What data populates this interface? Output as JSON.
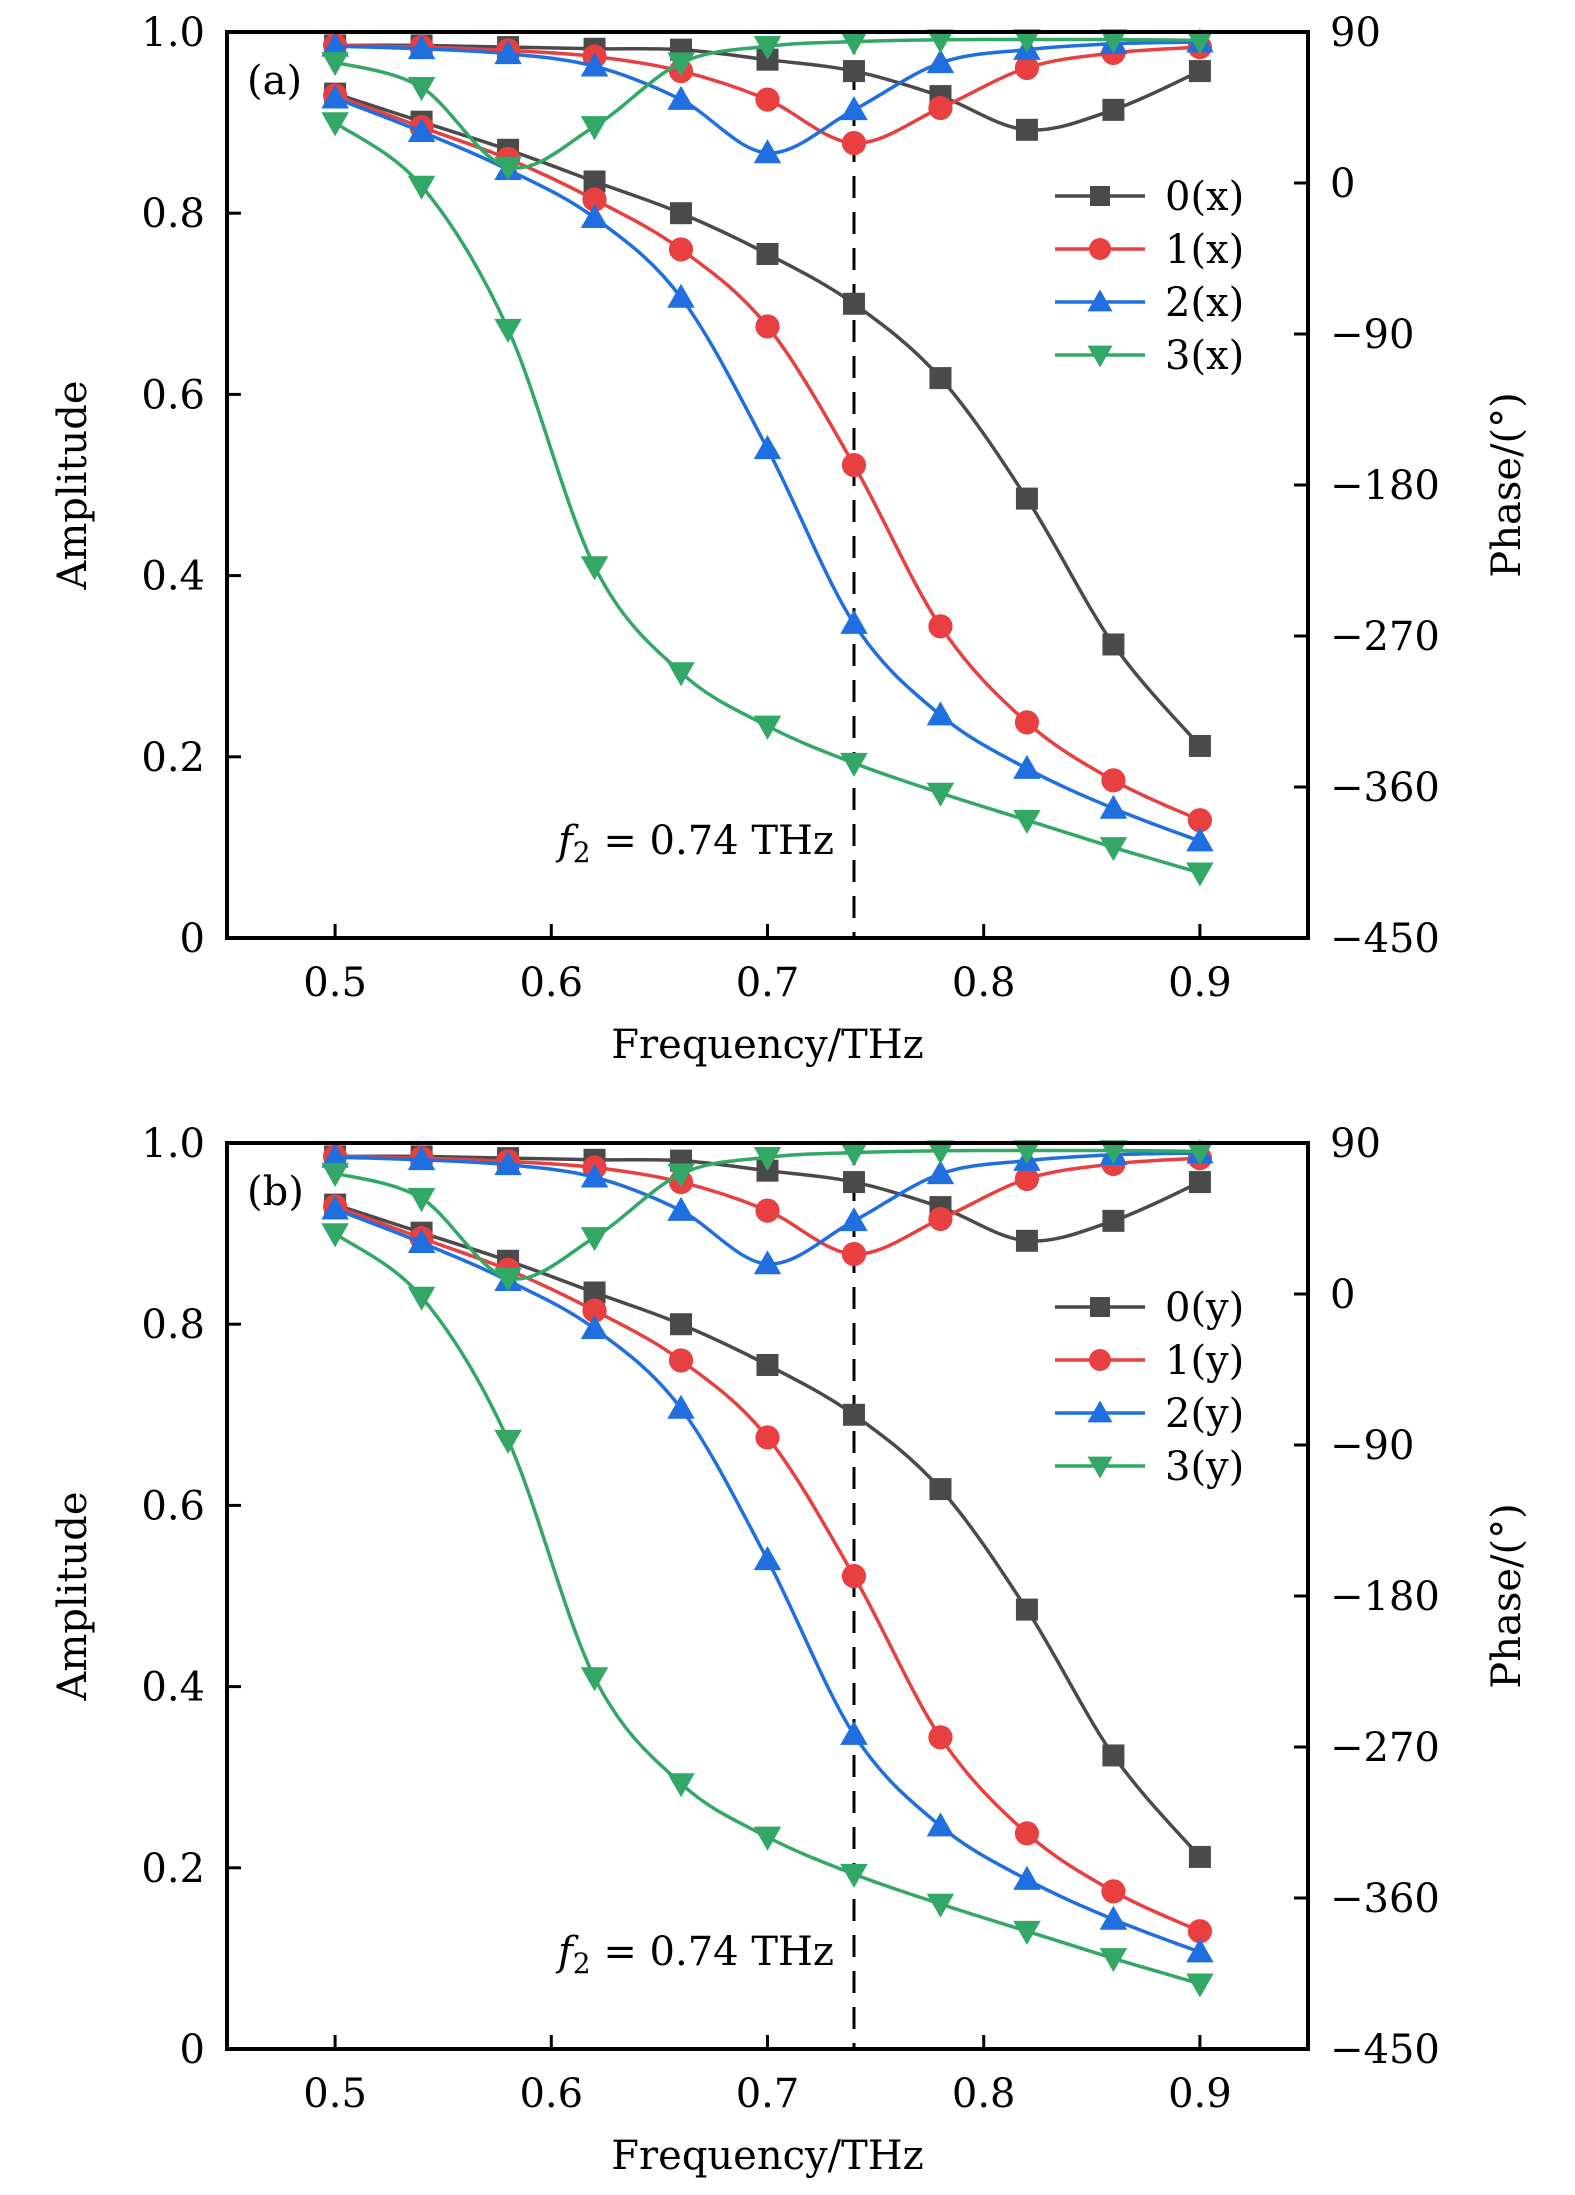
{
  "chart_data": [
    {
      "type": "line",
      "panel_label": "(a)",
      "xlabel": "Frequency/THz",
      "ylabel": "Amplitude",
      "y2label": "Phase/(°)",
      "xlim": [
        0.45,
        0.95
      ],
      "ylim": [
        0,
        1.0
      ],
      "y2lim": [
        -450,
        90
      ],
      "xticks": [
        0.5,
        0.6,
        0.7,
        0.8,
        0.9
      ],
      "xtick_labels": [
        "0.5",
        "0.6",
        "0.7",
        "0.8",
        "0.9"
      ],
      "yticks": [
        0,
        0.2,
        0.4,
        0.6,
        0.8,
        1.0
      ],
      "ytick_labels": [
        "0",
        "0.2",
        "0.4",
        "0.6",
        "0.8",
        "1.0"
      ],
      "y2ticks": [
        90,
        0,
        -90,
        -180,
        -270,
        -360,
        -450
      ],
      "y2tick_labels": [
        "90",
        "0",
        "−90",
        "−180",
        "−270",
        "−360",
        "−450"
      ],
      "grid": false,
      "legend_position": "right",
      "annotation": {
        "text_f": "f",
        "text_sub": "2",
        "text_rest": " = 0.74  THz",
        "x": 0.74
      },
      "x": [
        0.5,
        0.54,
        0.58,
        0.62,
        0.66,
        0.7,
        0.74,
        0.78,
        0.82,
        0.86,
        0.9
      ],
      "series": [
        {
          "name": "0(x)",
          "marker": "square",
          "color": "#4a4a4a",
          "amplitude": [
            0.932,
            0.901,
            0.87,
            0.835,
            0.8,
            0.755,
            0.7,
            0.618,
            0.485,
            0.324,
            0.212
          ],
          "phase": [
            82,
            82,
            81,
            80,
            79.5,
            73.5,
            66.7,
            51.8,
            31.7,
            43.6,
            66.7
          ]
        },
        {
          "name": "1(x)",
          "marker": "circle",
          "color": "#e84040",
          "amplitude": [
            0.93,
            0.895,
            0.86,
            0.815,
            0.76,
            0.675,
            0.522,
            0.344,
            0.238,
            0.174,
            0.13
          ],
          "phase": [
            82,
            81,
            79,
            75.4,
            66.7,
            49.7,
            23.8,
            44.7,
            68.6,
            77.5,
            81
          ]
        },
        {
          "name": "2(x)",
          "marker": "triangle-up",
          "color": "#1f6fe0",
          "amplitude": [
            0.927,
            0.89,
            0.848,
            0.795,
            0.707,
            0.54,
            0.347,
            0.246,
            0.187,
            0.143,
            0.107
          ],
          "phase": [
            81.5,
            80,
            77,
            69.6,
            49.7,
            17.9,
            43.6,
            71.6,
            79.5,
            83,
            84
          ]
        },
        {
          "name": "3(x)",
          "marker": "triangle-down",
          "color": "#33a866",
          "amplitude": [
            0.9,
            0.83,
            0.672,
            0.41,
            0.293,
            0.234,
            0.193,
            0.16,
            0.13,
            0.1,
            0.072
          ],
          "phase": [
            72,
            57,
            9.5,
            33.7,
            71.6,
            81.5,
            84.3,
            85.4,
            85.5,
            85.5,
            85
          ]
        }
      ]
    },
    {
      "type": "line",
      "panel_label": "(b)",
      "xlabel": "Frequency/THz",
      "ylabel": "Amplitude",
      "y2label": "Phase/(°)",
      "xlim": [
        0.45,
        0.95
      ],
      "ylim": [
        0,
        1.0
      ],
      "y2lim": [
        -450,
        90
      ],
      "xticks": [
        0.5,
        0.6,
        0.7,
        0.8,
        0.9
      ],
      "xtick_labels": [
        "0.5",
        "0.6",
        "0.7",
        "0.8",
        "0.9"
      ],
      "yticks": [
        0,
        0.2,
        0.4,
        0.6,
        0.8,
        1.0
      ],
      "ytick_labels": [
        "0",
        "0.2",
        "0.4",
        "0.6",
        "0.8",
        "1.0"
      ],
      "y2ticks": [
        90,
        0,
        -90,
        -180,
        -270,
        -360,
        -450
      ],
      "y2tick_labels": [
        "90",
        "0",
        "−90",
        "−180",
        "−270",
        "−360",
        "−450"
      ],
      "grid": false,
      "legend_position": "right",
      "annotation": {
        "text_f": "f",
        "text_sub": "2",
        "text_rest": " = 0.74  THz",
        "x": 0.74
      },
      "x": [
        0.5,
        0.54,
        0.58,
        0.62,
        0.66,
        0.7,
        0.74,
        0.78,
        0.82,
        0.86,
        0.9
      ],
      "series": [
        {
          "name": "0(y)",
          "marker": "square",
          "color": "#4a4a4a",
          "amplitude": [
            0.932,
            0.901,
            0.87,
            0.835,
            0.8,
            0.755,
            0.7,
            0.618,
            0.485,
            0.324,
            0.212
          ],
          "phase": [
            82,
            82,
            81,
            80,
            79.5,
            73.5,
            66.7,
            51.8,
            31.7,
            43.6,
            66.7
          ]
        },
        {
          "name": "1(y)",
          "marker": "circle",
          "color": "#e84040",
          "amplitude": [
            0.93,
            0.895,
            0.86,
            0.815,
            0.76,
            0.675,
            0.522,
            0.344,
            0.238,
            0.174,
            0.13
          ],
          "phase": [
            82,
            81,
            79,
            75.4,
            66.7,
            49.7,
            23.8,
            44.7,
            68.6,
            77.5,
            81
          ]
        },
        {
          "name": "2(y)",
          "marker": "triangle-up",
          "color": "#1f6fe0",
          "amplitude": [
            0.927,
            0.89,
            0.848,
            0.795,
            0.707,
            0.54,
            0.347,
            0.246,
            0.187,
            0.143,
            0.107
          ],
          "phase": [
            81.5,
            80,
            77,
            69.6,
            49.7,
            17.9,
            43.6,
            71.6,
            79.5,
            83,
            84
          ]
        },
        {
          "name": "3(y)",
          "marker": "triangle-down",
          "color": "#33a866",
          "amplitude": [
            0.9,
            0.83,
            0.672,
            0.41,
            0.293,
            0.234,
            0.193,
            0.16,
            0.13,
            0.1,
            0.072
          ],
          "phase": [
            72,
            57,
            9.5,
            33.7,
            71.6,
            81.5,
            84.3,
            85.4,
            85.5,
            85.5,
            85
          ]
        }
      ]
    }
  ]
}
